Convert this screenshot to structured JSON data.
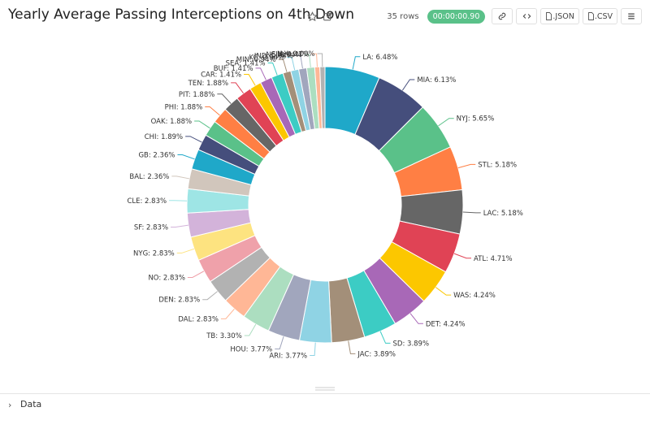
{
  "header": {
    "title": "Yearly Average Passing Interceptions on 4th Down",
    "rows_label": "35 rows",
    "timer": "00:00:00.90",
    "json_label": ".JSON",
    "csv_label": ".CSV"
  },
  "icons": {
    "favorite": "star-icon",
    "edit": "edit-icon",
    "link": "link-icon",
    "code": "code-icon",
    "menu": "menu-icon",
    "file": "file-icon"
  },
  "footer": {
    "data_label": "Data"
  },
  "colors": [
    "#1fa8c9",
    "#454e7c",
    "#5ac189",
    "#ff7f44",
    "#666666",
    "#e04355",
    "#fcc700",
    "#a868b7",
    "#3cccc4",
    "#a38f79",
    "#8fd3e4",
    "#a1a6bd",
    "#acdec0",
    "#ffb796",
    "#b2b2b2",
    "#efa1aa",
    "#fde380",
    "#d3b3da",
    "#9ee5e5",
    "#d1c6bc"
  ],
  "chart_data": {
    "type": "pie",
    "donut": true,
    "title": "Yearly Average Passing Interceptions on 4th Down",
    "labels": [
      "LA",
      "MIA",
      "NYJ",
      "STL",
      "LAC",
      "ATL",
      "WAS",
      "DET",
      "SD",
      "JAC",
      "ARI",
      "HOU",
      "TB",
      "DAL",
      "DEN",
      "NO",
      "NYG",
      "SF",
      "CLE",
      "BAL",
      "GB",
      "CHI",
      "OAK",
      "PHI",
      "PIT",
      "TEN",
      "CAR",
      "BUF",
      "SEA",
      "MIN",
      "KC",
      "IND",
      "NE",
      "CIN",
      "JAX"
    ],
    "values": [
      6.48,
      6.13,
      5.65,
      5.18,
      5.18,
      4.71,
      4.24,
      4.24,
      3.89,
      3.89,
      3.77,
      3.77,
      3.3,
      2.83,
      2.83,
      2.83,
      2.83,
      2.83,
      2.83,
      2.36,
      2.36,
      1.89,
      1.88,
      1.88,
      1.88,
      1.88,
      1.41,
      1.41,
      1.41,
      0.94,
      0.94,
      0.94,
      0.94,
      0.47,
      0.0
    ],
    "display_labels": [
      "LA: 6.48%",
      "MIA: 6.13%",
      "NYJ: 5.65%",
      "STL: 5.18%",
      "LAC: 5.18%",
      "ATL: 4.71%",
      "WAS: 4.24%",
      "DET: 4.24%",
      "SD: 3.89%",
      "JAC: 3.89%",
      "ARI: 3.77%",
      "HOU: 3.77%",
      "TB: 3.30%",
      "DAL: 2.83%",
      "DEN: 2.83%",
      "NO: 2.83%",
      "NYG: 2.83%",
      "SF: 2.83%",
      "CLE: 2.83%",
      "BAL: 2.36%",
      "GB: 2.36%",
      "CHI: 1.89%",
      "OAK: 1.88%",
      "PHI: 1.88%",
      "PIT: 1.88%",
      "TEN: 1.88%",
      "CAR: 1.41%",
      "BUF: 1.41%",
      "SEA: 1.41%",
      "MIN: 0.94%",
      "KC: 0.94%",
      "IND: 0.94%",
      "NE: 0.94%",
      "CIN: 0.47%",
      "JAX: 0.00%"
    ],
    "unit": "%"
  }
}
